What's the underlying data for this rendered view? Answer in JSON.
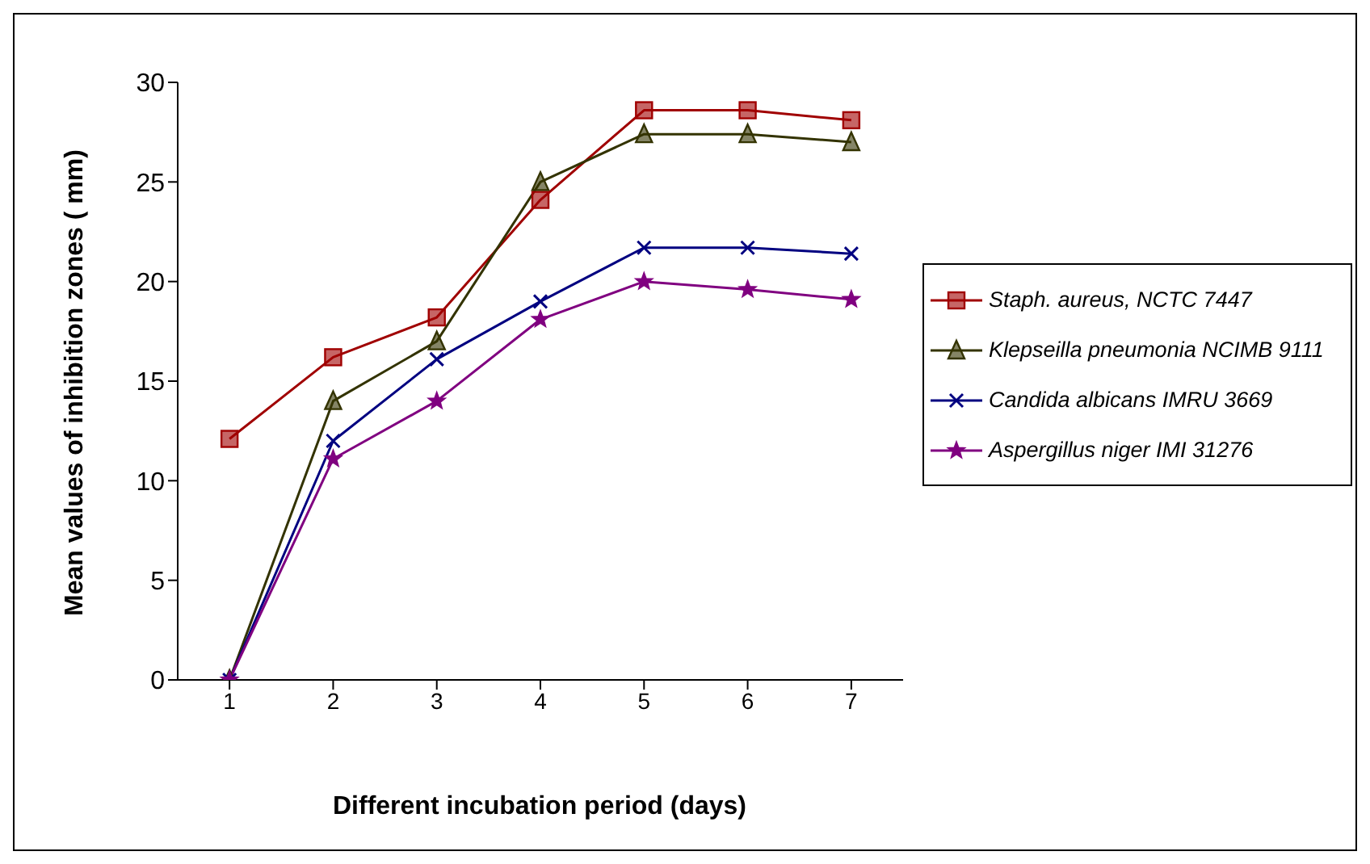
{
  "chart_data": {
    "type": "line",
    "xlabel": "Different incubation period (days)",
    "ylabel": "Mean values of inhibition zones ( mm)",
    "categories": [
      "1",
      "2",
      "3",
      "4",
      "5",
      "6",
      "7"
    ],
    "ylim": [
      0,
      30
    ],
    "yticks": [
      0,
      5,
      10,
      15,
      20,
      25,
      30
    ],
    "grid": false,
    "legend": "right",
    "line_style": "solid",
    "series": [
      {
        "name": "Staph. aureus, NCTC 7447",
        "color": "#a00000",
        "marker": "square",
        "values": [
          12.1,
          16.2,
          18.2,
          24.1,
          28.6,
          28.6,
          28.1
        ]
      },
      {
        "name": "Klepseilla pneumonia NCIMB 9111",
        "color": "#333300",
        "marker": "triangle",
        "values": [
          0,
          14,
          17,
          25,
          27.4,
          27.4,
          27
        ]
      },
      {
        "name": "Candida albicans IMRU 3669",
        "color": "#000080",
        "marker": "cross",
        "values": [
          0,
          12,
          16.1,
          19,
          21.7,
          21.7,
          21.4
        ]
      },
      {
        "name": "Aspergillus niger IMI 31276",
        "color": "#800080",
        "marker": "star",
        "values": [
          0,
          11.1,
          14,
          18.1,
          20,
          19.6,
          19.1
        ]
      }
    ]
  }
}
